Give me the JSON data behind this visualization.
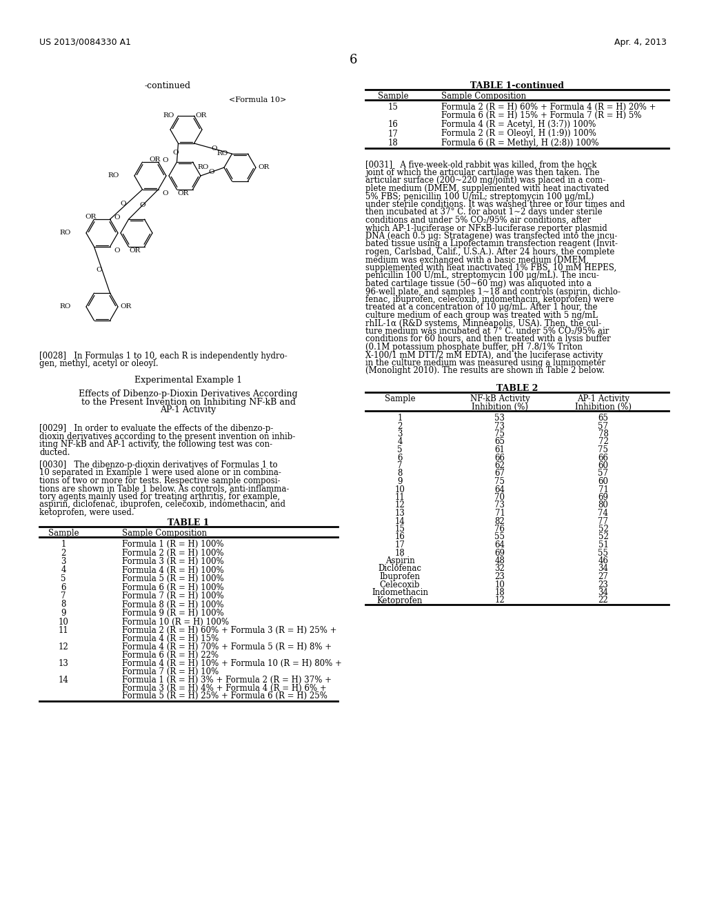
{
  "background_color": "#ffffff",
  "header_left": "US 2013/0084330 A1",
  "header_right": "Apr. 4, 2013",
  "page_number": "6",
  "continued_label": "-continued",
  "formula_label": "<Formula 10>",
  "table1cont_title": "TABLE 1-continued",
  "table1cont_rows": [
    [
      "15",
      "Formula 2 (R = H) 60% + Formula 4 (R = H) 20% +",
      "Formula 6 (R = H) 15% + Formula 7 (R = H) 5%"
    ],
    [
      "16",
      "Formula 4 (R = Acetyl, H (3:7)) 100%",
      ""
    ],
    [
      "17",
      "Formula 2 (R = Oleoyl, H (1:9)) 100%",
      ""
    ],
    [
      "18",
      "Formula 6 (R = Methyl, H (2:8)) 100%",
      ""
    ]
  ],
  "p0031_lines": [
    "[0031]   A five-week-old rabbit was killed, from the hock",
    "joint of which the articular cartilage was then taken. The",
    "articular surface (200~220 mg/joint) was placed in a com-",
    "plete medium (DMEM, supplemented with heat inactivated",
    "5% FBS; penicillin 100 U/mL; streptomycin 100 μg/mL)",
    "under sterile conditions. It was washed three or four times and",
    "then incubated at 37° C. for about 1~2 days under sterile",
    "conditions and under 5% CO₂/95% air conditions, after",
    "which AP-1-luciferase or NFκB-luciferase reporter plasmid",
    "DNA (each 0.5 μg: Stratagene) was transfected into the incu-",
    "bated tissue using a Lipofectamin transfection reagent (Invit-",
    "rogen, Carlsbad, Calif., U.S.A.). After 24 hours, the complete",
    "medium was exchanged with a basic medium (DMEM,",
    "supplemented with heat inactivated 1% FBS, 10 mM HEPES,",
    "penicillin 100 U/mL, streptomycin 100 μg/mL). The incu-",
    "bated cartilage tissue (50~60 mg) was aliquoted into a",
    "96-well plate, and samples 1~18 and controls (aspirin, dichlo-",
    "fenac, ibuprofen, celecoxib, indomethacin, ketoprofen) were",
    "treated at a concentration of 10 μg/mL. After 1 hour, the",
    "culture medium of each group was treated with 5 ng/mL",
    "rhIL-1α (R&D systems, Minneapolis, USA). Then, the cul-",
    "ture medium was incubated at 7° C. under 5% CO₂/95% air",
    "conditions for 60 hours, and then treated with a lysis buffer",
    "(0.1M potassium phosphate buffer, pH 7.8/1% Triton",
    "X-100/1 mM DTT/2 mM EDTA), and the luciferase activity",
    "in the culture medium was measured using a luminometer",
    "(Monolight 2010). The results are shown in Table 2 below."
  ],
  "table2_title": "TABLE 2",
  "table2_rows": [
    [
      "1",
      "53",
      "65"
    ],
    [
      "2",
      "73",
      "57"
    ],
    [
      "3",
      "75",
      "78"
    ],
    [
      "4",
      "65",
      "72"
    ],
    [
      "5",
      "61",
      "75"
    ],
    [
      "6",
      "66",
      "66"
    ],
    [
      "7",
      "62",
      "60"
    ],
    [
      "8",
      "67",
      "57"
    ],
    [
      "9",
      "75",
      "60"
    ],
    [
      "10",
      "64",
      "71"
    ],
    [
      "11",
      "70",
      "69"
    ],
    [
      "12",
      "73",
      "80"
    ],
    [
      "13",
      "71",
      "74"
    ],
    [
      "14",
      "82",
      "77"
    ],
    [
      "15",
      "76",
      "52"
    ],
    [
      "16",
      "55",
      "52"
    ],
    [
      "17",
      "64",
      "51"
    ],
    [
      "18",
      "69",
      "55"
    ],
    [
      "Aspirin",
      "48",
      "46"
    ],
    [
      "Diclofenac",
      "32",
      "34"
    ],
    [
      "Ibuprofen",
      "23",
      "27"
    ],
    [
      "Celecoxib",
      "10",
      "23"
    ],
    [
      "Indomethacin",
      "18",
      "34"
    ],
    [
      "Ketoprofen",
      "12",
      "22"
    ]
  ],
  "p0028_lines": [
    "[0028]   In Formulas 1 to 10, each R is independently hydro-",
    "gen, methyl, acetyl or oleoyl."
  ],
  "experimental_title": "Experimental Example 1",
  "effects_lines": [
    "Effects of Dibenzo-p-Dioxin Derivatives According",
    "to the Present Invention on Inhibiting NF-kB and",
    "AP-1 Activity"
  ],
  "p0029_lines": [
    "[0029]   In order to evaluate the effects of the dibenzo-p-",
    "dioxin derivatives according to the present invention on inhib-",
    "iting NF-kB and AP-1 activity, the following test was con-",
    "ducted."
  ],
  "p0030_lines": [
    "[0030]   The dibenzo-p-dioxin derivatives of Formulas 1 to",
    "10 separated in Example 1 were used alone or in combina-",
    "tions of two or more for tests. Respective sample composi-",
    "tions are shown in Table 1 below. As controls, anti-inflamma-",
    "tory agents mainly used for treating arthritis, for example,",
    "aspirin, diclofenac, ibuprofen, celecoxib, indomethacin, and",
    "ketoprofen, were used."
  ],
  "table1_title": "TABLE 1",
  "table1_rows": [
    [
      "1",
      "Formula 1 (R = H) 100%"
    ],
    [
      "2",
      "Formula 2 (R = H) 100%"
    ],
    [
      "3",
      "Formula 3 (R = H) 100%"
    ],
    [
      "4",
      "Formula 4 (R = H) 100%"
    ],
    [
      "5",
      "Formula 5 (R = H) 100%"
    ],
    [
      "6",
      "Formula 6 (R = H) 100%"
    ],
    [
      "7",
      "Formula 7 (R = H) 100%"
    ],
    [
      "8",
      "Formula 8 (R = H) 100%"
    ],
    [
      "9",
      "Formula 9 (R = H) 100%"
    ],
    [
      "10",
      "Formula 10 (R = H) 100%"
    ],
    [
      "11",
      "Formula 2 (R = H) 60% + Formula 3 (R = H) 25% +\nFormula 4 (R = H) 15%"
    ],
    [
      "12",
      "Formula 4 (R = H) 70% + Formula 5 (R = H) 8% +\nFormula 6 (R = H) 22%"
    ],
    [
      "13",
      "Formula 4 (R = H) 10% + Formula 10 (R = H) 80% +\nFormula 7 (R = H) 10%"
    ],
    [
      "14",
      "Formula 1 (R = H) 3% + Formula 2 (R = H) 37% +\nFormula 3 (R = H) 4% + Formula 4 (R = H) 6% +\nFormula 5 (R = H) 25% + Formula 6 (R = H) 25%"
    ]
  ]
}
